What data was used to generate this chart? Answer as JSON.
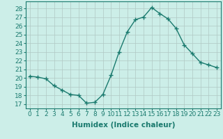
{
  "x": [
    0,
    1,
    2,
    3,
    4,
    5,
    6,
    7,
    8,
    9,
    10,
    11,
    12,
    13,
    14,
    15,
    16,
    17,
    18,
    19,
    20,
    21,
    22,
    23
  ],
  "y": [
    20.2,
    20.1,
    19.9,
    19.1,
    18.6,
    18.1,
    18.0,
    17.1,
    17.2,
    18.1,
    20.3,
    23.0,
    25.3,
    26.7,
    27.0,
    28.1,
    27.4,
    26.8,
    25.7,
    23.8,
    22.8,
    21.8,
    21.5,
    21.2
  ],
  "line_color": "#1a7a6e",
  "marker": "+",
  "marker_size": 4,
  "marker_lw": 1.0,
  "line_width": 1.0,
  "bg_color": "#cceee8",
  "grid_color": "#b0c8c4",
  "xlabel": "Humidex (Indice chaleur)",
  "ylabel_ticks": [
    17,
    18,
    19,
    20,
    21,
    22,
    23,
    24,
    25,
    26,
    27,
    28
  ],
  "ylim": [
    16.5,
    28.8
  ],
  "xlim": [
    -0.5,
    23.5
  ],
  "xlabel_fontsize": 7.5,
  "tick_fontsize": 6.5
}
